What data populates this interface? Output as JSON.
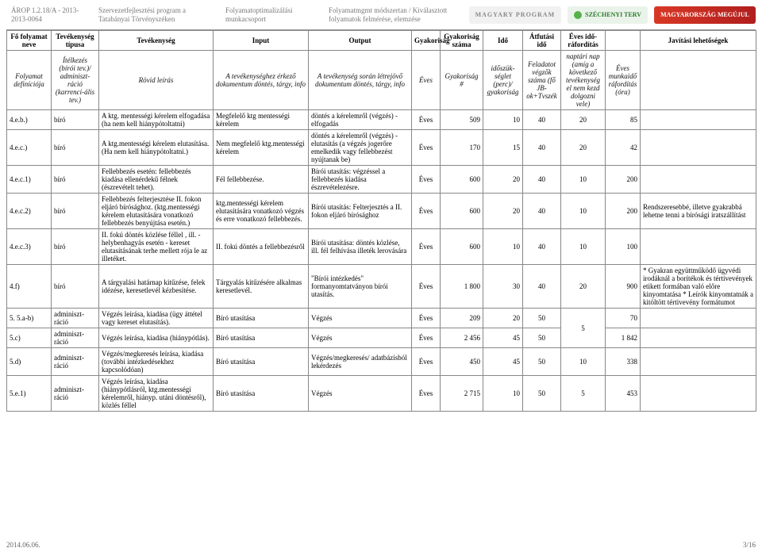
{
  "top": {
    "ref": "ÁROP 1.2.18/A - 2013-2013-0064",
    "org": "Szervezetfejlesztési program a Tatabányai Törvényszéken",
    "group": "Folyamatoptimalizálási munkacsoport",
    "method": "Folyamatmgmt módszertan / Kiválasztott folyamatok felmérése, elemzése",
    "logo_m": "MAGYARY PROGRAM",
    "logo_s": "SZÉCHENYI TERV",
    "logo_g": "MAGYARORSZÁG MEGÚJUL"
  },
  "header": {
    "c1": "Fő folyamat neve",
    "c2": "Tevékenység típusa",
    "c3": "Tevékenység",
    "c4": "Input",
    "c5": "Output",
    "c6": "Gyakoriság",
    "c7": "Gyakoriság száma",
    "c8": "Idő",
    "c9": "Átfutási idő",
    "c10": "Éves idő-ráfordítás",
    "c11_blank": "",
    "c12": "Javítási lehetőségek"
  },
  "subheader": {
    "c1": "Folyamat definíciója",
    "c2": "Ítélkezés (bírói tev.)/ adminiszt-ráció (karrenci-ális tev.)",
    "c3": "Rövid leírás",
    "c4": "A tevékenységhez érkező dokumentum döntés, tárgy, info",
    "c5": "A tevékenység során létrejövő dokumentum döntés, tárgy, info",
    "c6": "Éves",
    "c7": "Gyakoriság #",
    "c8": "időszük-séglet (perc)/ gyakoriság",
    "c9": "Feladatot végzők száma (fő JB-ok+Tvszék",
    "c10": "naptári nap (amíg a következő tevékenység el nem kezd dolgozni vele)",
    "c11": "Éves munkaidő ráfordítás (óra)",
    "c12": ""
  },
  "rows": [
    {
      "id": "4.e.b.)",
      "type": "bíró",
      "desc": "A ktg. mentességi kérelem elfogadása (ha nem kell hiánypótoltatni)",
      "input": "Megfelelő ktg mentességi kérelem",
      "output": "döntés a kérelemről (végzés) - elfogadás",
      "freq": "Éves",
      "n": "509",
      "t": "10",
      "w": "40",
      "lead": "20",
      "hrs": "85",
      "fix": ""
    },
    {
      "id": "4.e.c.)",
      "type": "bíró",
      "desc": "A ktg.mentességi kérelem elutasítása. (Ha nem kell hiánypótoltatni.)",
      "input": "Nem megfelelő ktg.mentességi kérelem",
      "output": "döntés a kérelemről (végzés) - elutasítás (a végzés jogerőre emelkedik vagy fellebbezést nyújtanak be)",
      "freq": "Éves",
      "n": "170",
      "t": "15",
      "w": "40",
      "lead": "20",
      "hrs": "42",
      "fix": ""
    },
    {
      "id": "4.e.c.1)",
      "type": "bíró",
      "desc": "Fellebbezés esetén: fellebbezés kiadása ellenérdekű félnek (észrevételt tehet).",
      "input": "Fél fellebbezése.",
      "output": "Bírói utasítás: végzéssel a fellebbezés kiadása észrevételezésre.",
      "freq": "Éves",
      "n": "600",
      "t": "20",
      "w": "40",
      "lead": "10",
      "hrs": "200",
      "fix": ""
    },
    {
      "id": "4.e.c.2)",
      "type": "bíró",
      "desc": "Fellebbezés felterjesztése II. fokon eljáró bírósághoz. (ktg.mentességi kérelem elutasítására vonatkozó fellebbezés benyújtása esetén.)",
      "input": "ktg.mentességi kérelem elutasítására vonatkozó végzés és erre vonatkozó fellebbezés.",
      "output": "Bírói utasítás: Felterjesztés a II. fokon eljáró bírósághoz",
      "freq": "Éves",
      "n": "600",
      "t": "20",
      "w": "40",
      "lead": "10",
      "hrs": "200",
      "fix": "Rendszeresebbé, illetve gyakrabbá lehetne tenni a bírósági iratszállítást"
    },
    {
      "id": "4.e.c.3)",
      "type": "bíró",
      "desc": "II. fokú döntés közlése féllel , ill. - helybenhagyás esetén - kereset elutasításának terhe mellett rója le az illetéket.",
      "input": "II. fokú döntés a fellebbezésről",
      "output": "Bírói utasítása: döntés közlése, ill. fél felhívása illeték lerovására",
      "freq": "Éves",
      "n": "600",
      "t": "10",
      "w": "40",
      "lead": "10",
      "hrs": "100",
      "fix": ""
    },
    {
      "id": "4.f)",
      "type": "bíró",
      "desc": "A tárgyalási határnap kitűzése, felek idézése, keresetlevél kézbesítése.",
      "input": "Tárgyalás kitűzésére alkalmas keresetlevél.",
      "output": "\"Bírói intézkedés\" formanyomtatványon bírói utasítás.",
      "freq": "Éves",
      "n": "1 800",
      "t": "30",
      "w": "40",
      "lead": "20",
      "hrs": "900",
      "fix": "* Gyakran együttműködő ügyvédi irodáknál a borítékok és tértivevények etikett formában való előre kinyomtatása\n* Leírók kinyomtatnák a kitöltött tértivevény formátumot"
    },
    {
      "id": "5. 5.a-b)",
      "type": "adminiszt-ráció",
      "desc": "Végzés leírása, kiadása (ügy áttétel vagy kereset elutasítás).",
      "input": "Bíró utasítása",
      "output": "Végzés",
      "freq": "Éves",
      "n": "209",
      "t": "20",
      "w": "50",
      "lead": "",
      "hrs": "70",
      "fix": "",
      "leadRowspan": 2
    },
    {
      "id": "5.c)",
      "type": "adminiszt-ráció",
      "desc": "Végzés leírása, kiadása (hiánypótlás).",
      "input": "Bíró utasítása",
      "output": "Végzés",
      "freq": "Éves",
      "n": "2 456",
      "t": "45",
      "w": "50",
      "lead": "5",
      "hrs": "1 842",
      "fix": "",
      "leadSkip": true
    },
    {
      "id": "5.d)",
      "type": "adminiszt-ráció",
      "desc": "Végzés/megkeresés leírása, kiadása (további intézkedésekhez kapcsolódóan)",
      "input": "Bíró utasítása",
      "output": "Végzés/megkeresés/ adatbázisból lekérdezés",
      "freq": "Éves",
      "n": "450",
      "t": "45",
      "w": "50",
      "lead": "10",
      "hrs": "338",
      "fix": ""
    },
    {
      "id": "5.e.1)",
      "type": "adminiszt-ráció",
      "desc": "Végzés leírása, kiadása (hiánypótlásról, ktg.mentességi kérelemről, hiányp. utáni döntésről), közlés féllel",
      "input": "Bíró utasítása",
      "output": "Végzés",
      "freq": "Éves",
      "n": "2 715",
      "t": "10",
      "w": "50",
      "lead": "5",
      "hrs": "453",
      "fix": ""
    }
  ],
  "footer": {
    "date": "2014.06.06.",
    "page": "3/16"
  },
  "style": {
    "headerBorder": "#888",
    "mutedText": "#7a7a7a",
    "logoGreen": "#56b24a",
    "logoRedA": "#d83825",
    "logoRedB": "#b01e1e"
  }
}
